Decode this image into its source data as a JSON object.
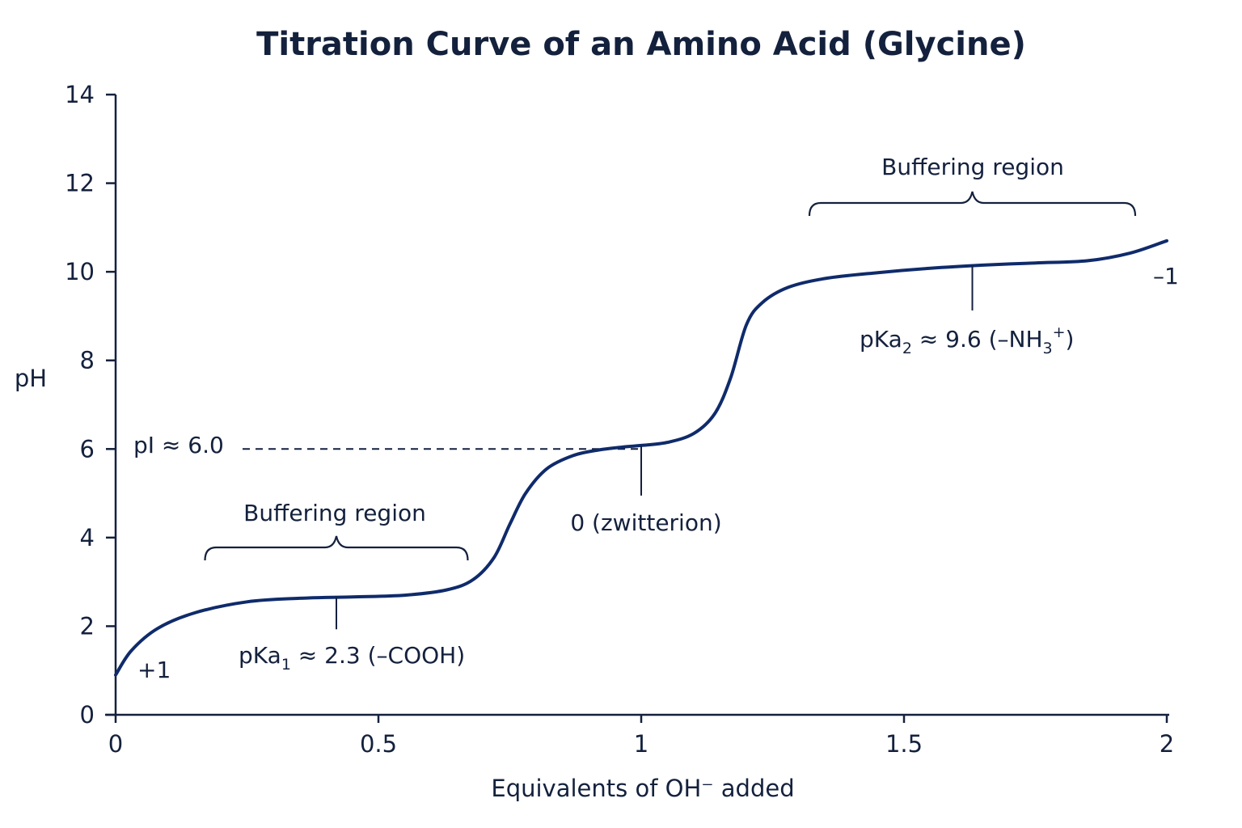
{
  "chart_data": {
    "type": "line",
    "title": "Titration Curve of an Amino Acid (Glycine)",
    "xlabel": "Equivalents of OH⁻ added",
    "ylabel": "pH",
    "xlim": [
      0,
      2
    ],
    "ylim": [
      0,
      14
    ],
    "x_ticks": [
      "0",
      "0.5",
      "1",
      "1.5",
      "2"
    ],
    "y_ticks": [
      "0",
      "2",
      "4",
      "6",
      "8",
      "10",
      "12",
      "14"
    ],
    "grid": false,
    "colors": {
      "curve": "#0f2b6b",
      "text": "#14213d"
    },
    "series": [
      {
        "x": [
          0,
          0.03,
          0.08,
          0.15,
          0.25,
          0.35,
          0.45,
          0.55,
          0.63,
          0.68,
          0.72,
          0.75,
          0.78,
          0.82,
          0.87,
          0.92,
          0.97,
          1.0,
          1.05,
          1.1,
          1.14,
          1.17,
          1.2,
          1.23,
          1.28,
          1.35,
          1.45,
          1.55,
          1.65,
          1.75,
          1.85,
          1.93,
          2.0
        ],
        "y": [
          0.9,
          1.45,
          1.95,
          2.3,
          2.55,
          2.63,
          2.66,
          2.7,
          2.82,
          3.05,
          3.55,
          4.3,
          5.0,
          5.55,
          5.85,
          5.98,
          6.05,
          6.08,
          6.15,
          6.35,
          6.8,
          7.6,
          8.8,
          9.3,
          9.65,
          9.85,
          9.98,
          10.08,
          10.15,
          10.2,
          10.25,
          10.42,
          10.7
        ]
      }
    ],
    "reference_line": {
      "label": "pI ≈ 6.0",
      "y": 6.0,
      "x_end": 1.0
    },
    "markers": [
      {
        "label": "0 (zwitterion)",
        "x": 1.0,
        "y": 6.08
      }
    ],
    "pka1": {
      "prefix": "pKa",
      "sub": "1",
      "rest": " ≈ 2.3 (–COOH)",
      "x": 0.42,
      "y": 2.66
    },
    "pka2": {
      "prefix": "pKa",
      "sub": "2",
      "mid": " ≈ 9.6 (–NH",
      "sub2": "3",
      "sup": "+",
      "end": ")",
      "x": 1.63,
      "y": 10.15
    },
    "buffer_regions": [
      {
        "label": "Buffering region",
        "x_start": 0.17,
        "x_end": 0.67
      },
      {
        "label": "Buffering region",
        "x_start": 1.32,
        "x_end": 1.94
      }
    ],
    "charge_labels": [
      {
        "label": "+1",
        "position": "start"
      },
      {
        "label": "–1",
        "position": "end"
      }
    ]
  }
}
